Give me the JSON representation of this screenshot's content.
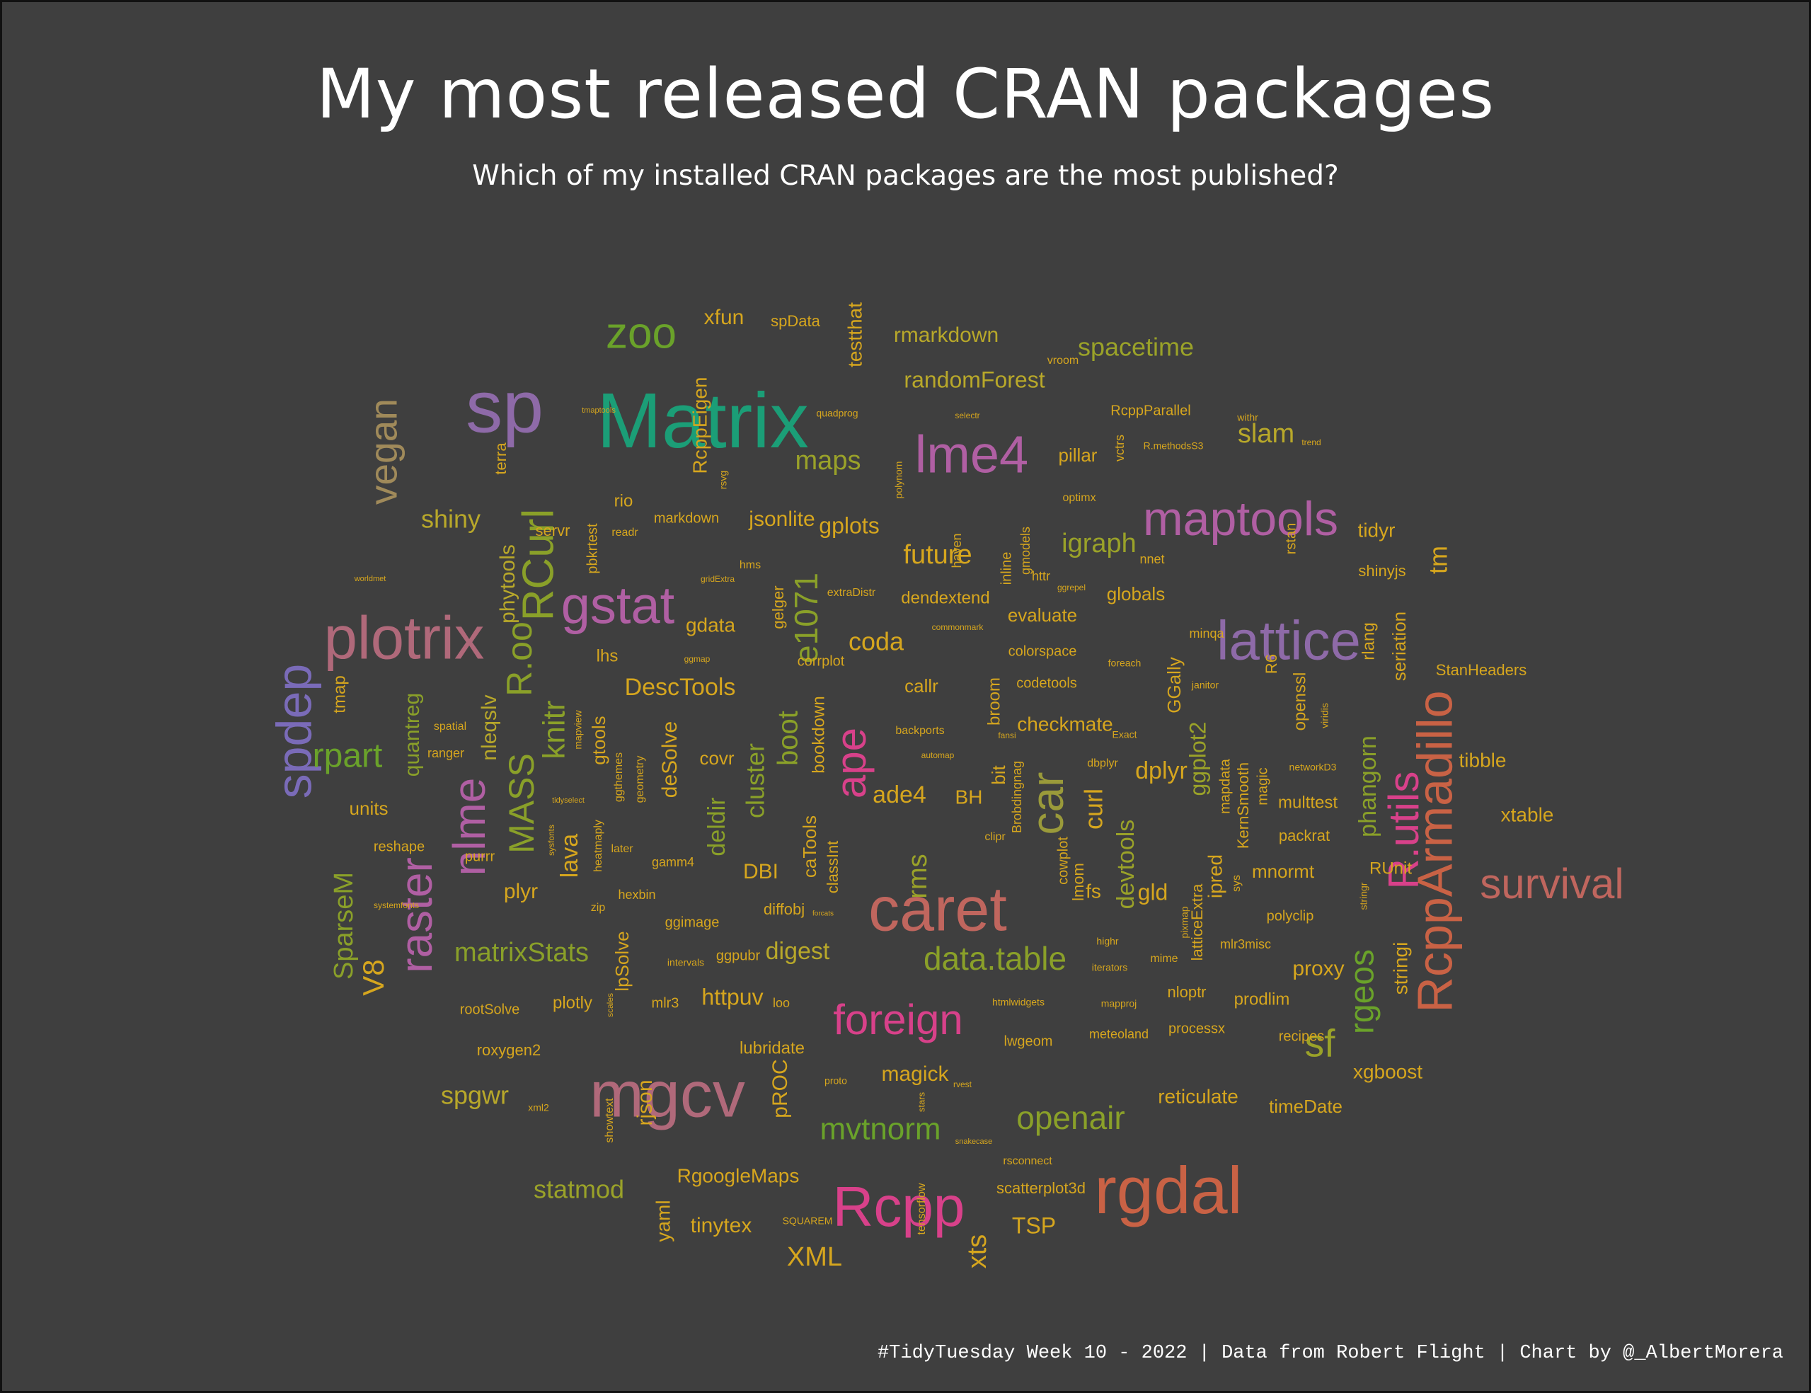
{
  "title": "My most released CRAN packages",
  "subtitle": "Which of my installed CRAN packages are the most published?",
  "caption": "#TidyTuesday Week 10 - 2022 | Data from Robert Flight | Chart by @_AlbertMorera",
  "colors": {
    "background": "#3f3f3f",
    "palette": [
      "#1b9e77",
      "#d95f02",
      "#7570b3",
      "#e7298a",
      "#66a61e",
      "#e6ab02",
      "#a6761d"
    ]
  },
  "chart_data": {
    "type": "wordcloud",
    "words": [
      {
        "word": "Matrix",
        "color": "#1b9e77"
      },
      {
        "word": "sp",
        "color": "#8e6aa8"
      },
      {
        "word": "caret",
        "color": "#c0665e"
      },
      {
        "word": "rgdal",
        "color": "#c96245"
      },
      {
        "word": "mgcv",
        "color": "#b0697a"
      },
      {
        "word": "plotrix",
        "color": "#b0697a"
      },
      {
        "word": "lme4",
        "color": "#b05fa3"
      },
      {
        "word": "Rcpp",
        "color": "#d8418a"
      },
      {
        "word": "lattice",
        "color": "#8e6aa8"
      },
      {
        "word": "maptools",
        "color": "#b05fa3"
      },
      {
        "word": "RcppArmadillo",
        "color": "#c96245"
      },
      {
        "word": "spdep",
        "color": "#7a6bb8"
      },
      {
        "word": "gstat",
        "color": "#b05fa3"
      },
      {
        "word": "survival",
        "color": "#c0665e"
      },
      {
        "word": "zoo",
        "color": "#6aa22a"
      },
      {
        "word": "raster",
        "color": "#b05fa3"
      },
      {
        "word": "nlme",
        "color": "#b05fa3"
      },
      {
        "word": "ape",
        "color": "#d8418a"
      },
      {
        "word": "car",
        "color": "#9a9a3a"
      },
      {
        "word": "RCurl",
        "color": "#8aa029"
      },
      {
        "word": "foreign",
        "color": "#d8418a"
      },
      {
        "word": "R.utils",
        "color": "#d8418a"
      },
      {
        "word": "vegan",
        "color": "#a08a5a"
      },
      {
        "word": "MASS",
        "color": "#8aa029"
      },
      {
        "word": "R.oo",
        "color": "#8aa029"
      },
      {
        "word": "data.table",
        "color": "#8aa029"
      },
      {
        "word": "rpart",
        "color": "#6aa22a"
      },
      {
        "word": "openair",
        "color": "#8aa029"
      },
      {
        "word": "sf",
        "color": "#9aa229"
      },
      {
        "word": "mvtnorm",
        "color": "#6aa22a"
      },
      {
        "word": "rgeos",
        "color": "#6aa22a"
      },
      {
        "word": "e1071",
        "color": "#8aa029"
      },
      {
        "word": "knitr",
        "color": "#8aa029"
      },
      {
        "word": "V8",
        "color": "#d6a61e"
      },
      {
        "word": "SparseM",
        "color": "#8aa029"
      },
      {
        "word": "matrixStats",
        "color": "#8aa029"
      },
      {
        "word": "spacetime",
        "color": "#9aa229"
      },
      {
        "word": "statmod",
        "color": "#9aa229"
      },
      {
        "word": "XML",
        "color": "#d6a61e"
      },
      {
        "word": "xts",
        "color": "#d6a61e"
      },
      {
        "word": "shiny",
        "color": "#b8a82a"
      },
      {
        "word": "slam",
        "color": "#b8a82a"
      },
      {
        "word": "maps",
        "color": "#9aa229"
      },
      {
        "word": "igraph",
        "color": "#9aa229"
      },
      {
        "word": "future",
        "color": "#d6a61e"
      },
      {
        "word": "coda",
        "color": "#d6a61e"
      },
      {
        "word": "DescTools",
        "color": "#d6a61e"
      },
      {
        "word": "cluster",
        "color": "#8aa029"
      },
      {
        "word": "deldir",
        "color": "#8aa029"
      },
      {
        "word": "curl",
        "color": "#d6a61e"
      },
      {
        "word": "dplyr",
        "color": "#d6a61e"
      },
      {
        "word": "ggplot2",
        "color": "#9aa229"
      },
      {
        "word": "tm",
        "color": "#d6a61e"
      },
      {
        "word": "phangorn",
        "color": "#8aa029"
      },
      {
        "word": "tibble",
        "color": "#d6a61e"
      },
      {
        "word": "xtable",
        "color": "#d6a61e"
      },
      {
        "word": "rms",
        "color": "#9aa229"
      },
      {
        "word": "ade4",
        "color": "#d6a61e"
      },
      {
        "word": "devtools",
        "color": "#9aa229"
      },
      {
        "word": "spgwr",
        "color": "#b8a82a"
      },
      {
        "word": "httpuv",
        "color": "#d6a61e"
      },
      {
        "word": "digest",
        "color": "#b8a82a"
      },
      {
        "word": "magick",
        "color": "#d6a61e"
      },
      {
        "word": "tinytex",
        "color": "#d6a61e"
      },
      {
        "word": "TSP",
        "color": "#d6a61e"
      },
      {
        "word": "RgoogleMaps",
        "color": "#d6a61e"
      },
      {
        "word": "randomForest",
        "color": "#b8a82a"
      },
      {
        "word": "rmarkdown",
        "color": "#b8a82a"
      },
      {
        "word": "xfun",
        "color": "#d6a61e"
      },
      {
        "word": "testthat",
        "color": "#d6a61e"
      },
      {
        "word": "RcppEigen",
        "color": "#d6a61e"
      },
      {
        "word": "phytools",
        "color": "#b8a82a"
      },
      {
        "word": "quantreg",
        "color": "#8aa029"
      },
      {
        "word": "nleqslv",
        "color": "#b8a82a"
      },
      {
        "word": "lava",
        "color": "#d6a61e"
      },
      {
        "word": "plyr",
        "color": "#d6a61e"
      },
      {
        "word": "gplots",
        "color": "#d6a61e"
      },
      {
        "word": "jsonlite",
        "color": "#d6a61e"
      },
      {
        "word": "gdata",
        "color": "#d6a61e"
      },
      {
        "word": "boot",
        "color": "#8aa029"
      },
      {
        "word": "DBI",
        "color": "#d6a61e"
      },
      {
        "word": "deSolve",
        "color": "#d6a61e"
      },
      {
        "word": "checkmate",
        "color": "#d6a61e"
      },
      {
        "word": "callr",
        "color": "#d6a61e"
      },
      {
        "word": "BH",
        "color": "#d6a61e"
      },
      {
        "word": "fs",
        "color": "#d6a61e"
      },
      {
        "word": "gld",
        "color": "#d6a61e"
      },
      {
        "word": "ipred",
        "color": "#d6a61e"
      },
      {
        "word": "mnormt",
        "color": "#d6a61e"
      },
      {
        "word": "proxy",
        "color": "#d6a61e"
      },
      {
        "word": "xgboost",
        "color": "#d6a61e"
      },
      {
        "word": "stringi",
        "color": "#d6a61e"
      },
      {
        "word": "seriation",
        "color": "#d6a61e"
      },
      {
        "word": "tidyr",
        "color": "#d6a61e"
      },
      {
        "word": "pillar",
        "color": "#d6a61e"
      },
      {
        "word": "globals",
        "color": "#d6a61e"
      },
      {
        "word": "evaluate",
        "color": "#d6a61e"
      },
      {
        "word": "dendextend",
        "color": "#d6a61e"
      },
      {
        "word": "reticulate",
        "color": "#d6a61e"
      },
      {
        "word": "timeDate",
        "color": "#d6a61e"
      },
      {
        "word": "prodlim",
        "color": "#d6a61e"
      },
      {
        "word": "multtest",
        "color": "#d6a61e"
      },
      {
        "word": "packrat",
        "color": "#d6a61e"
      },
      {
        "word": "lpSolve",
        "color": "#d6a61e"
      },
      {
        "word": "plotly",
        "color": "#d6a61e"
      },
      {
        "word": "yaml",
        "color": "#d6a61e"
      },
      {
        "word": "rjson",
        "color": "#d6a61e"
      },
      {
        "word": "pROC",
        "color": "#d6a61e"
      },
      {
        "word": "units",
        "color": "#d6a61e"
      },
      {
        "word": "tmap",
        "color": "#d6a61e"
      },
      {
        "word": "terra",
        "color": "#d6a61e"
      },
      {
        "word": "rio",
        "color": "#d6a61e"
      },
      {
        "word": "lhs",
        "color": "#d6a61e"
      },
      {
        "word": "covr",
        "color": "#d6a61e"
      },
      {
        "word": "gtools",
        "color": "#d6a61e"
      },
      {
        "word": "lubridate",
        "color": "#d6a61e"
      },
      {
        "word": "bookdown",
        "color": "#d6a61e"
      },
      {
        "word": "caTools",
        "color": "#d6a61e"
      },
      {
        "word": "classInt",
        "color": "#d6a61e"
      },
      {
        "word": "diffobj",
        "color": "#d6a61e"
      },
      {
        "word": "broom",
        "color": "#d6a61e"
      },
      {
        "word": "bit",
        "color": "#d6a61e"
      },
      {
        "word": "Brobdingnag",
        "color": "#d6a61e"
      },
      {
        "word": "cowplot",
        "color": "#d6a61e"
      },
      {
        "word": "lmom",
        "color": "#d6a61e"
      },
      {
        "word": "latticeExtra",
        "color": "#d6a61e"
      },
      {
        "word": "mapdata",
        "color": "#d6a61e"
      },
      {
        "word": "KernSmooth",
        "color": "#d6a61e"
      },
      {
        "word": "magic",
        "color": "#d6a61e"
      },
      {
        "word": "openssl",
        "color": "#d6a61e"
      },
      {
        "word": "rlang",
        "color": "#d6a61e"
      },
      {
        "word": "shinyjs",
        "color": "#d6a61e"
      },
      {
        "word": "StanHeaders",
        "color": "#d6a61e"
      },
      {
        "word": "RUnit",
        "color": "#d6a61e"
      },
      {
        "word": "polyclip",
        "color": "#d6a61e"
      },
      {
        "word": "nloptr",
        "color": "#d6a61e"
      },
      {
        "word": "processx",
        "color": "#d6a61e"
      },
      {
        "word": "recipes",
        "color": "#d6a61e"
      },
      {
        "word": "meteoland",
        "color": "#d6a61e"
      },
      {
        "word": "lwgeom",
        "color": "#d6a61e"
      },
      {
        "word": "scatterplot3d",
        "color": "#d6a61e"
      },
      {
        "word": "codetools",
        "color": "#d6a61e"
      },
      {
        "word": "colorspace",
        "color": "#d6a61e"
      },
      {
        "word": "corrplot",
        "color": "#d6a61e"
      },
      {
        "word": "gelger",
        "color": "#d6a61e"
      },
      {
        "word": "pbkrtest",
        "color": "#d6a61e"
      },
      {
        "word": "servr",
        "color": "#d6a61e"
      },
      {
        "word": "markdown",
        "color": "#d6a61e"
      },
      {
        "word": "roxygen2",
        "color": "#d6a61e"
      },
      {
        "word": "rootSolve",
        "color": "#d6a61e"
      },
      {
        "word": "reshape",
        "color": "#d6a61e"
      },
      {
        "word": "ranger",
        "color": "#d6a61e"
      },
      {
        "word": "spatial",
        "color": "#d6a61e"
      },
      {
        "word": "spData",
        "color": "#d6a61e"
      },
      {
        "word": "RcppParallel",
        "color": "#d6a61e"
      },
      {
        "word": "ggimage",
        "color": "#d6a61e"
      },
      {
        "word": "ggpubr",
        "color": "#d6a61e"
      },
      {
        "word": "gamm4",
        "color": "#d6a61e"
      },
      {
        "word": "hexbin",
        "color": "#d6a61e"
      },
      {
        "word": "mlr3",
        "color": "#d6a61e"
      },
      {
        "word": "loo",
        "color": "#d6a61e"
      },
      {
        "word": "rsconnect",
        "color": "#d6a61e"
      },
      {
        "word": "mime",
        "color": "#d6a61e"
      },
      {
        "word": "mlr3misc",
        "color": "#d6a61e"
      },
      {
        "word": "highr",
        "color": "#d6a61e"
      },
      {
        "word": "iterators",
        "color": "#d6a61e"
      },
      {
        "word": "htmlwidgets",
        "color": "#d6a61e"
      },
      {
        "word": "mapproj",
        "color": "#d6a61e"
      },
      {
        "word": "dbplyr",
        "color": "#d6a61e"
      },
      {
        "word": "clipr",
        "color": "#d6a61e"
      },
      {
        "word": "backports",
        "color": "#d6a61e"
      },
      {
        "word": "minqa",
        "color": "#d6a61e"
      },
      {
        "word": "foreach",
        "color": "#d6a61e"
      },
      {
        "word": "janitor",
        "color": "#d6a61e"
      },
      {
        "word": "Exact",
        "color": "#d6a61e"
      },
      {
        "word": "nnet",
        "color": "#d6a61e"
      },
      {
        "word": "httr",
        "color": "#d6a61e"
      },
      {
        "word": "ggrepel",
        "color": "#d6a61e"
      },
      {
        "word": "optimx",
        "color": "#d6a61e"
      },
      {
        "word": "withr",
        "color": "#d6a61e"
      },
      {
        "word": "R.methodsS3",
        "color": "#d6a61e"
      },
      {
        "word": "trend",
        "color": "#d6a61e"
      },
      {
        "word": "vroom",
        "color": "#d6a61e"
      },
      {
        "word": "quadprog",
        "color": "#d6a61e"
      },
      {
        "word": "selectr",
        "color": "#d6a61e"
      },
      {
        "word": "polynom",
        "color": "#d6a61e"
      },
      {
        "word": "tmaptools",
        "color": "#d6a61e"
      },
      {
        "word": "worldmet",
        "color": "#d6a61e"
      },
      {
        "word": "rsvg",
        "color": "#d6a61e"
      },
      {
        "word": "readr",
        "color": "#d6a61e"
      },
      {
        "word": "hms",
        "color": "#d6a61e"
      },
      {
        "word": "gridExtra",
        "color": "#d6a61e"
      },
      {
        "word": "ggmap",
        "color": "#d6a61e"
      },
      {
        "word": "mapview",
        "color": "#d6a61e"
      },
      {
        "word": "ggthemes",
        "color": "#d6a61e"
      },
      {
        "word": "geometry",
        "color": "#d6a61e"
      },
      {
        "word": "later",
        "color": "#d6a61e"
      },
      {
        "word": "heatmaply",
        "color": "#d6a61e"
      },
      {
        "word": "tidyselect",
        "color": "#d6a61e"
      },
      {
        "word": "sysfonts",
        "color": "#d6a61e"
      },
      {
        "word": "purrr",
        "color": "#d6a61e"
      },
      {
        "word": "systemfonts",
        "color": "#d6a61e"
      },
      {
        "word": "zip",
        "color": "#d6a61e"
      },
      {
        "word": "intervals",
        "color": "#d6a61e"
      },
      {
        "word": "scales",
        "color": "#d6a61e"
      },
      {
        "word": "showtext",
        "color": "#d6a61e"
      },
      {
        "word": "xml2",
        "color": "#d6a61e"
      },
      {
        "word": "SQUAREM",
        "color": "#d6a61e"
      },
      {
        "word": "tensorflow",
        "color": "#d6a61e"
      },
      {
        "word": "stars",
        "color": "#d6a61e"
      },
      {
        "word": "rvest",
        "color": "#d6a61e"
      },
      {
        "word": "snakecase",
        "color": "#d6a61e"
      },
      {
        "word": "proto",
        "color": "#d6a61e"
      },
      {
        "word": "extraDistr",
        "color": "#d6a61e"
      },
      {
        "word": "commonmark",
        "color": "#d6a61e"
      },
      {
        "word": "automap",
        "color": "#d6a61e"
      },
      {
        "word": "forcats",
        "color": "#d6a61e"
      },
      {
        "word": "networkD3",
        "color": "#d6a61e"
      },
      {
        "word": "viridis",
        "color": "#d6a61e"
      },
      {
        "word": "R6",
        "color": "#d6a61e"
      },
      {
        "word": "rstan",
        "color": "#d6a61e"
      },
      {
        "word": "haven",
        "color": "#d6a61e"
      },
      {
        "word": "inline",
        "color": "#d6a61e"
      },
      {
        "word": "gmodels",
        "color": "#d6a61e"
      },
      {
        "word": "vctrs",
        "color": "#d6a61e"
      },
      {
        "word": "GGally",
        "color": "#d6a61e"
      },
      {
        "word": "sys",
        "color": "#d6a61e"
      },
      {
        "word": "stringr",
        "color": "#d6a61e"
      },
      {
        "word": "pixmap",
        "color": "#d6a61e"
      },
      {
        "word": "fansi",
        "color": "#d6a61e"
      }
    ]
  }
}
